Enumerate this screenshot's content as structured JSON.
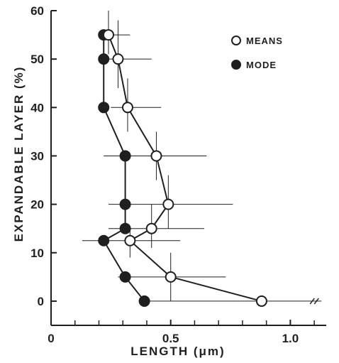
{
  "chart_data": {
    "type": "scatter",
    "title": "",
    "xlabel": "LENGTH (μm)",
    "ylabel": "EXPANDABLE LAYER (%)",
    "xlim": [
      0,
      1.15
    ],
    "ylim": [
      -5,
      60
    ],
    "x_ticks": [
      0,
      0.5,
      1.0
    ],
    "x_tick_labels": [
      "0",
      "0.5",
      "1.0"
    ],
    "x_minor_ticks": [
      0.1,
      0.2,
      0.3,
      0.4,
      0.6,
      0.7,
      0.8,
      0.9,
      1.1
    ],
    "y_ticks": [
      0,
      10,
      20,
      30,
      40,
      50,
      60
    ],
    "y_tick_labels": [
      "0",
      "10",
      "20",
      "30",
      "40",
      "50",
      "60"
    ],
    "grid": false,
    "legend_position": "top-right",
    "colors": {
      "ink": "#1f1f1f",
      "background": "#ffffff"
    },
    "series": [
      {
        "name": "MEANS",
        "marker": "open-circle",
        "connected": true,
        "points": [
          {
            "y": 55,
            "x": 0.24,
            "x_err": [
              0.2,
              0.33
            ],
            "y_err": [
              51,
              60
            ]
          },
          {
            "y": 50,
            "x": 0.28,
            "x_err": [
              0.22,
              0.42
            ],
            "y_err": [
              44,
              58
            ]
          },
          {
            "y": 40,
            "x": 0.32,
            "x_err": [
              0.25,
              0.46
            ],
            "y_err": [
              35,
              46
            ]
          },
          {
            "y": 30,
            "x": 0.44,
            "x_err": [
              0.22,
              0.65
            ],
            "y_err": [
              25,
              35
            ]
          },
          {
            "y": 20,
            "x": 0.49,
            "x_err": [
              0.24,
              0.76
            ],
            "y_err": [
              15,
              26
            ]
          },
          {
            "y": 15,
            "x": 0.42,
            "x_err": [
              0.24,
              0.64
            ],
            "y_err": [
              11,
              20
            ]
          },
          {
            "y": 12.5,
            "x": 0.33,
            "x_err": [
              0.13,
              0.54
            ],
            "y_err": [
              9,
              15
            ]
          },
          {
            "y": 5,
            "x": 0.5,
            "x_err": [
              0.28,
              0.73
            ],
            "y_err": [
              0,
              10
            ]
          },
          {
            "y": 0,
            "x": 0.88,
            "x_err": [
              0.38,
              1.13
            ],
            "y_err": [
              0,
              0
            ]
          }
        ]
      },
      {
        "name": "MODE",
        "marker": "filled-circle",
        "connected": true,
        "points": [
          {
            "y": 55,
            "x": 0.22
          },
          {
            "y": 50,
            "x": 0.22
          },
          {
            "y": 40,
            "x": 0.22
          },
          {
            "y": 30,
            "x": 0.31
          },
          {
            "y": 20,
            "x": 0.31
          },
          {
            "y": 15,
            "x": 0.31
          },
          {
            "y": 12.5,
            "x": 0.22
          },
          {
            "y": 5,
            "x": 0.31
          },
          {
            "y": 0,
            "x": 0.39
          }
        ]
      }
    ]
  }
}
